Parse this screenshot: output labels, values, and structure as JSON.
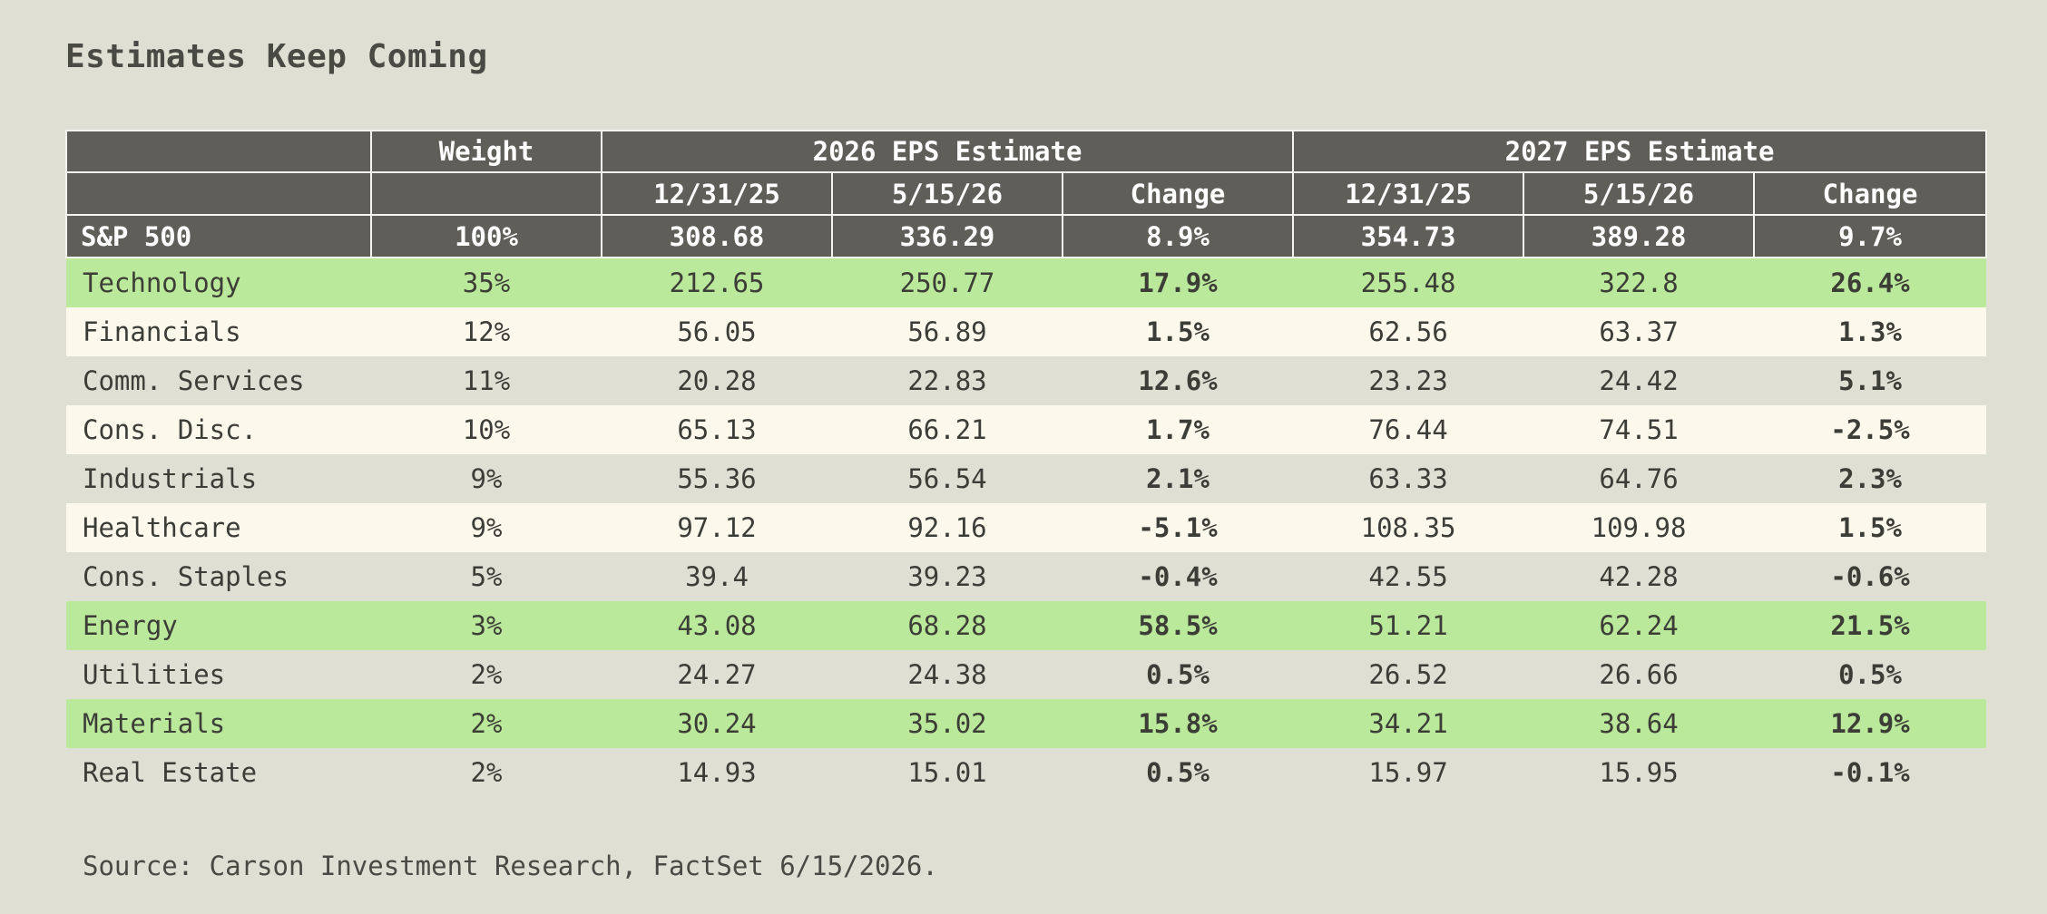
{
  "title": "Estimates Keep Coming",
  "source": "Source: Carson Investment Research, FactSet 6/15/2026.",
  "colors": {
    "header_bg": "#5f5e58",
    "highlight_green": "#bbe99b",
    "row_cream": "#fcf8ec",
    "row_gray": "#dfdfd3",
    "page_bg": "#dfdfd3"
  },
  "chart_data": {
    "type": "table",
    "title": "Estimates Keep Coming",
    "header": {
      "weight": "Weight",
      "group_2026": "2026 EPS Estimate",
      "group_2027": "2027 EPS Estimate",
      "sub": [
        "12/31/25",
        "5/15/26",
        "Change",
        "12/31/25",
        "5/15/26",
        "Change"
      ]
    },
    "total_row": {
      "name": "S&P 500",
      "weight": "100%",
      "eps2026_start": "308.68",
      "eps2026_end": "336.29",
      "change2026": "8.9%",
      "eps2027_start": "354.73",
      "eps2027_end": "389.28",
      "change2027": "9.7%"
    },
    "rows": [
      {
        "name": "Technology",
        "weight": "35%",
        "eps2026_start": "212.65",
        "eps2026_end": "250.77",
        "change2026": "17.9%",
        "eps2027_start": "255.48",
        "eps2027_end": "322.8",
        "change2027": "26.4%",
        "highlight": "green"
      },
      {
        "name": "Financials",
        "weight": "12%",
        "eps2026_start": "56.05",
        "eps2026_end": "56.89",
        "change2026": "1.5%",
        "eps2027_start": "62.56",
        "eps2027_end": "63.37",
        "change2027": "1.3%",
        "highlight": "cream"
      },
      {
        "name": "Comm. Services",
        "weight": "11%",
        "eps2026_start": "20.28",
        "eps2026_end": "22.83",
        "change2026": "12.6%",
        "eps2027_start": "23.23",
        "eps2027_end": "24.42",
        "change2027": "5.1%",
        "highlight": "gray"
      },
      {
        "name": "Cons. Disc.",
        "weight": "10%",
        "eps2026_start": "65.13",
        "eps2026_end": "66.21",
        "change2026": "1.7%",
        "eps2027_start": "76.44",
        "eps2027_end": "74.51",
        "change2027": "-2.5%",
        "highlight": "cream"
      },
      {
        "name": "Industrials",
        "weight": "9%",
        "eps2026_start": "55.36",
        "eps2026_end": "56.54",
        "change2026": "2.1%",
        "eps2027_start": "63.33",
        "eps2027_end": "64.76",
        "change2027": "2.3%",
        "highlight": "gray"
      },
      {
        "name": "Healthcare",
        "weight": "9%",
        "eps2026_start": "97.12",
        "eps2026_end": "92.16",
        "change2026": "-5.1%",
        "eps2027_start": "108.35",
        "eps2027_end": "109.98",
        "change2027": "1.5%",
        "highlight": "cream"
      },
      {
        "name": "Cons. Staples",
        "weight": "5%",
        "eps2026_start": "39.4",
        "eps2026_end": "39.23",
        "change2026": "-0.4%",
        "eps2027_start": "42.55",
        "eps2027_end": "42.28",
        "change2027": "-0.6%",
        "highlight": "gray"
      },
      {
        "name": "Energy",
        "weight": "3%",
        "eps2026_start": "43.08",
        "eps2026_end": "68.28",
        "change2026": "58.5%",
        "eps2027_start": "51.21",
        "eps2027_end": "62.24",
        "change2027": "21.5%",
        "highlight": "green"
      },
      {
        "name": "Utilities",
        "weight": "2%",
        "eps2026_start": "24.27",
        "eps2026_end": "24.38",
        "change2026": "0.5%",
        "eps2027_start": "26.52",
        "eps2027_end": "26.66",
        "change2027": "0.5%",
        "highlight": "gray"
      },
      {
        "name": "Materials",
        "weight": "2%",
        "eps2026_start": "30.24",
        "eps2026_end": "35.02",
        "change2026": "15.8%",
        "eps2027_start": "34.21",
        "eps2027_end": "38.64",
        "change2027": "12.9%",
        "highlight": "green"
      },
      {
        "name": "Real Estate",
        "weight": "2%",
        "eps2026_start": "14.93",
        "eps2026_end": "15.01",
        "change2026": "0.5%",
        "eps2027_start": "15.97",
        "eps2027_end": "15.95",
        "change2027": "-0.1%",
        "highlight": "gray"
      }
    ]
  }
}
